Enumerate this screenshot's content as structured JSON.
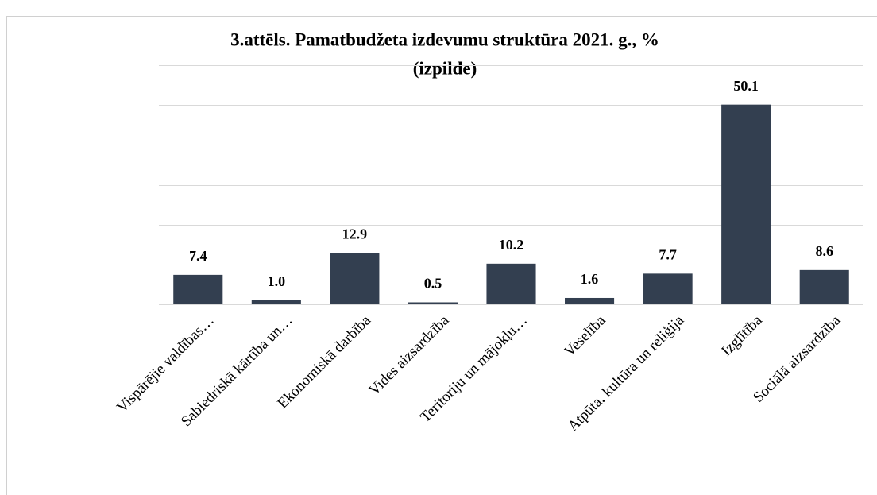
{
  "chart_data": {
    "type": "bar",
    "title": "3.attēls. Pamatbudžeta izdevumu struktūra 2021. g., %",
    "subtitle": "(izpilde)",
    "categories": [
      "Vispārējie valdības…",
      "Sabiedriskā kārtība un…",
      "Ekonomiskā darbība",
      "Vides aizsardzība",
      "Teritoriju un mājokļu…",
      "Veselība",
      "Atpūta, kultūra un reliģija",
      "Izglītība",
      "Sociālā aizsardzība"
    ],
    "values": [
      7.4,
      1.0,
      12.9,
      0.5,
      10.2,
      1.6,
      7.7,
      50.1,
      8.6
    ],
    "value_labels": [
      "7.4",
      "1.0",
      "12.9",
      "0.5",
      "10.2",
      "1.6",
      "7.7",
      "50.1",
      "8.6"
    ],
    "color": "#333f50",
    "ylim": [
      0,
      60
    ],
    "yticks": [
      0,
      10,
      20,
      30,
      40,
      50,
      60
    ],
    "grid": true
  }
}
